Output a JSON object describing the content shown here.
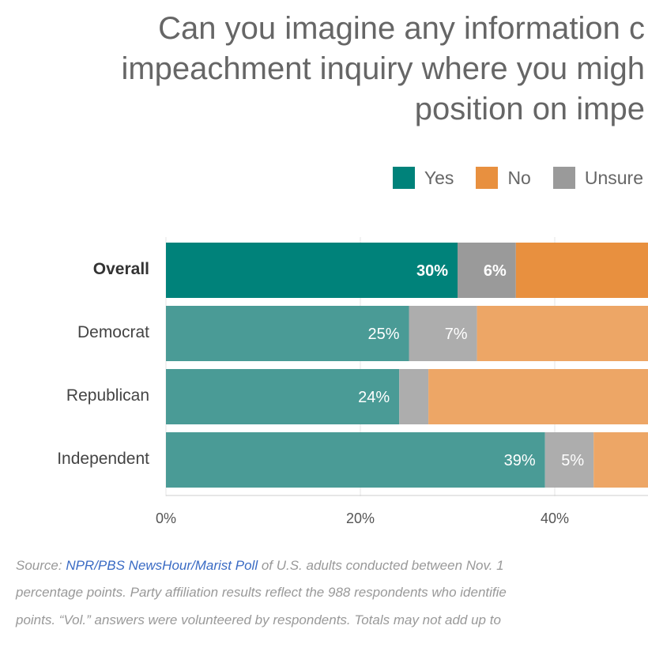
{
  "title_lines": [
    "Can you imagine any information c",
    "impeachment inquiry where you migh",
    "position on impe"
  ],
  "legend": [
    {
      "label": "Yes",
      "color": "#00827a"
    },
    {
      "label": "No",
      "color": "#e8903f"
    },
    {
      "label": "Unsure",
      "color": "#9a9a9a"
    }
  ],
  "chart_data": {
    "type": "bar",
    "orientation": "horizontal",
    "stacked": true,
    "categories": [
      "Overall",
      "Democrat",
      "Republican",
      "Independent"
    ],
    "series": [
      {
        "name": "Yes",
        "values": [
          30,
          25,
          24,
          39
        ],
        "labels": [
          "30%",
          "25%",
          "24%",
          "39%"
        ]
      },
      {
        "name": "Unsure",
        "values": [
          6,
          7,
          3,
          5
        ],
        "labels": [
          "6%",
          "7%",
          "",
          "5%"
        ]
      },
      {
        "name": "No",
        "values": [
          null,
          null,
          null,
          null
        ],
        "labels": [
          "",
          "",
          "",
          ""
        ]
      }
    ],
    "x_ticks": [
      "0%",
      "20%",
      "40%"
    ],
    "xlim": [
      0,
      100
    ],
    "grid": true,
    "legend_position": "top"
  },
  "footer": {
    "line1_prefix": "Source: ",
    "link": "NPR/PBS NewsHour/Marist Poll",
    "line1_rest": " of U.S. adults conducted between Nov. 1",
    "line2": "percentage points. Party affiliation results reflect the 988 respondents who identifie",
    "line3": "points. “Vol.” answers were volunteered by respondents. Totals may not add up to"
  }
}
